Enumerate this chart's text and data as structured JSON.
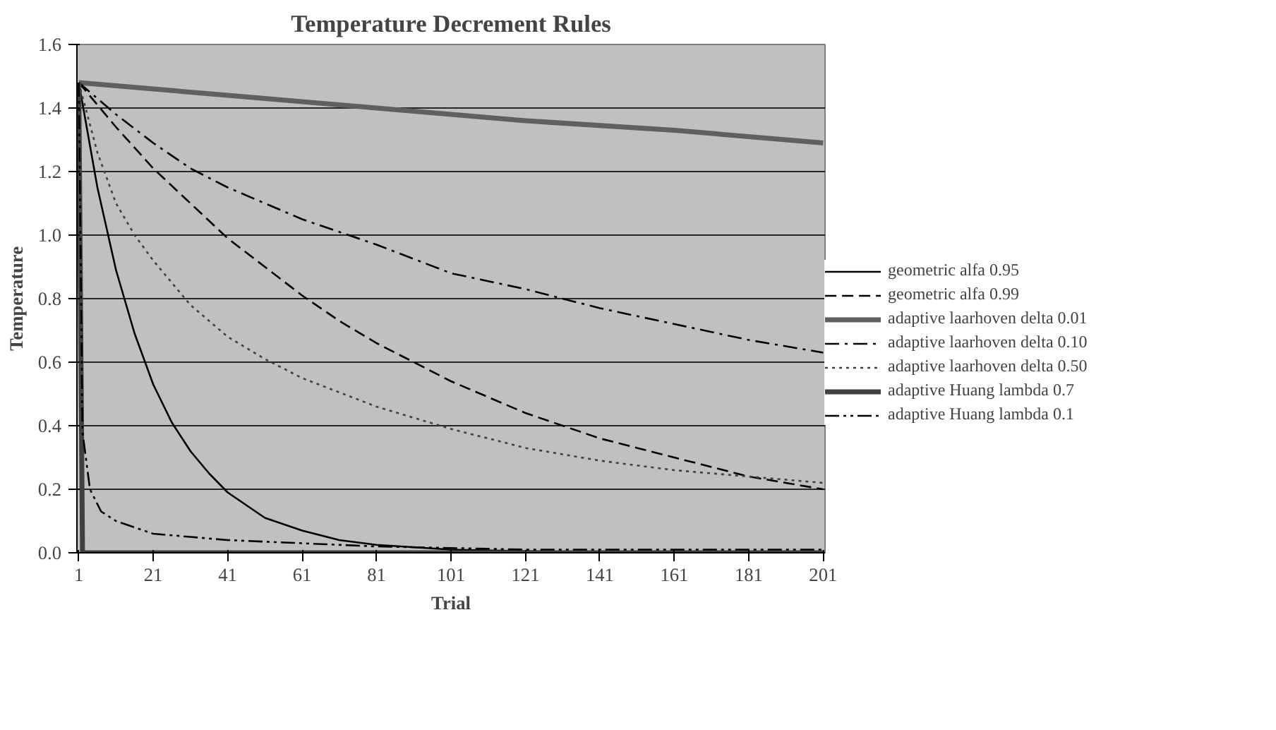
{
  "chart_data": {
    "type": "line",
    "title": "Temperature Decrement Rules",
    "xlabel": "Trial",
    "ylabel": "Temperature",
    "xlim": [
      0.5,
      201.5
    ],
    "xticks": [
      1,
      21,
      41,
      61,
      81,
      101,
      121,
      141,
      161,
      181,
      201
    ],
    "ylim": [
      0,
      1.6
    ],
    "yticks": [
      {
        "value": 0,
        "label": "0.0"
      },
      {
        "value": 0.2,
        "label": "0.2"
      },
      {
        "value": 0.4,
        "label": "0.4"
      },
      {
        "value": 0.6,
        "label": "0.6"
      },
      {
        "value": 0.8,
        "label": "0.8"
      },
      {
        "value": 1,
        "label": "1.0"
      },
      {
        "value": 1.2,
        "label": "1.2"
      },
      {
        "value": 1.4,
        "label": "1.4"
      },
      {
        "value": 1.6,
        "label": "1.6"
      }
    ],
    "grid": "y",
    "legend": "right",
    "series": [
      {
        "name": "geometric alfa 0.95",
        "color": "#000000",
        "line_style": "solid",
        "x": [
          1,
          6,
          11,
          16,
          21,
          26,
          31,
          36,
          41,
          51,
          61,
          71,
          81,
          101,
          121,
          161,
          201
        ],
        "values": [
          1.48,
          1.15,
          0.89,
          0.69,
          0.53,
          0.41,
          0.32,
          0.25,
          0.19,
          0.11,
          0.07,
          0.04,
          0.025,
          0.01,
          0.005,
          0.0,
          0.0
        ]
      },
      {
        "name": "geometric alfa 0.99",
        "color": "#000000",
        "line_style": "dashed",
        "x": [
          1,
          11,
          21,
          31,
          41,
          51,
          61,
          71,
          81,
          91,
          101,
          111,
          121,
          131,
          141,
          151,
          161,
          171,
          181,
          191,
          201
        ],
        "values": [
          1.48,
          1.34,
          1.21,
          1.1,
          0.99,
          0.9,
          0.81,
          0.73,
          0.66,
          0.6,
          0.54,
          0.49,
          0.44,
          0.4,
          0.36,
          0.33,
          0.3,
          0.27,
          0.24,
          0.22,
          0.2
        ]
      },
      {
        "name": "adaptive laarhoven delta 0.01",
        "color": "#606060",
        "line_style": "solid",
        "x": [
          1,
          41,
          81,
          121,
          161,
          201
        ],
        "values": [
          1.48,
          1.44,
          1.4,
          1.36,
          1.33,
          1.29
        ]
      },
      {
        "name": "adaptive laarhoven delta 0.10",
        "color": "#000000",
        "line_style": "dashdot",
        "x": [
          1,
          11,
          21,
          31,
          41,
          61,
          81,
          101,
          121,
          141,
          161,
          181,
          201
        ],
        "values": [
          1.48,
          1.38,
          1.29,
          1.21,
          1.15,
          1.05,
          0.97,
          0.88,
          0.83,
          0.77,
          0.72,
          0.67,
          0.63
        ]
      },
      {
        "name": "adaptive laarhoven delta 0.50",
        "color": "#404040",
        "line_style": "dotted",
        "x": [
          1,
          6,
          11,
          16,
          21,
          31,
          41,
          51,
          61,
          81,
          101,
          121,
          141,
          161,
          181,
          201
        ],
        "values": [
          1.48,
          1.26,
          1.1,
          1.0,
          0.92,
          0.78,
          0.68,
          0.61,
          0.55,
          0.46,
          0.39,
          0.33,
          0.29,
          0.26,
          0.24,
          0.22
        ]
      },
      {
        "name": "adaptive Huang lambda 0.7",
        "color": "#404040",
        "line_style": "solid",
        "x": [
          1,
          2,
          201
        ],
        "values": [
          1.48,
          0.0,
          0.0
        ]
      },
      {
        "name": "adaptive Huang lambda 0.1",
        "color": "#000000",
        "line_style": "dashdotdot",
        "x": [
          1,
          2,
          4,
          7,
          11,
          21,
          31,
          41,
          61,
          81,
          121,
          201
        ],
        "values": [
          1.48,
          0.38,
          0.2,
          0.13,
          0.1,
          0.06,
          0.05,
          0.04,
          0.03,
          0.02,
          0.01,
          0.01
        ]
      }
    ]
  }
}
